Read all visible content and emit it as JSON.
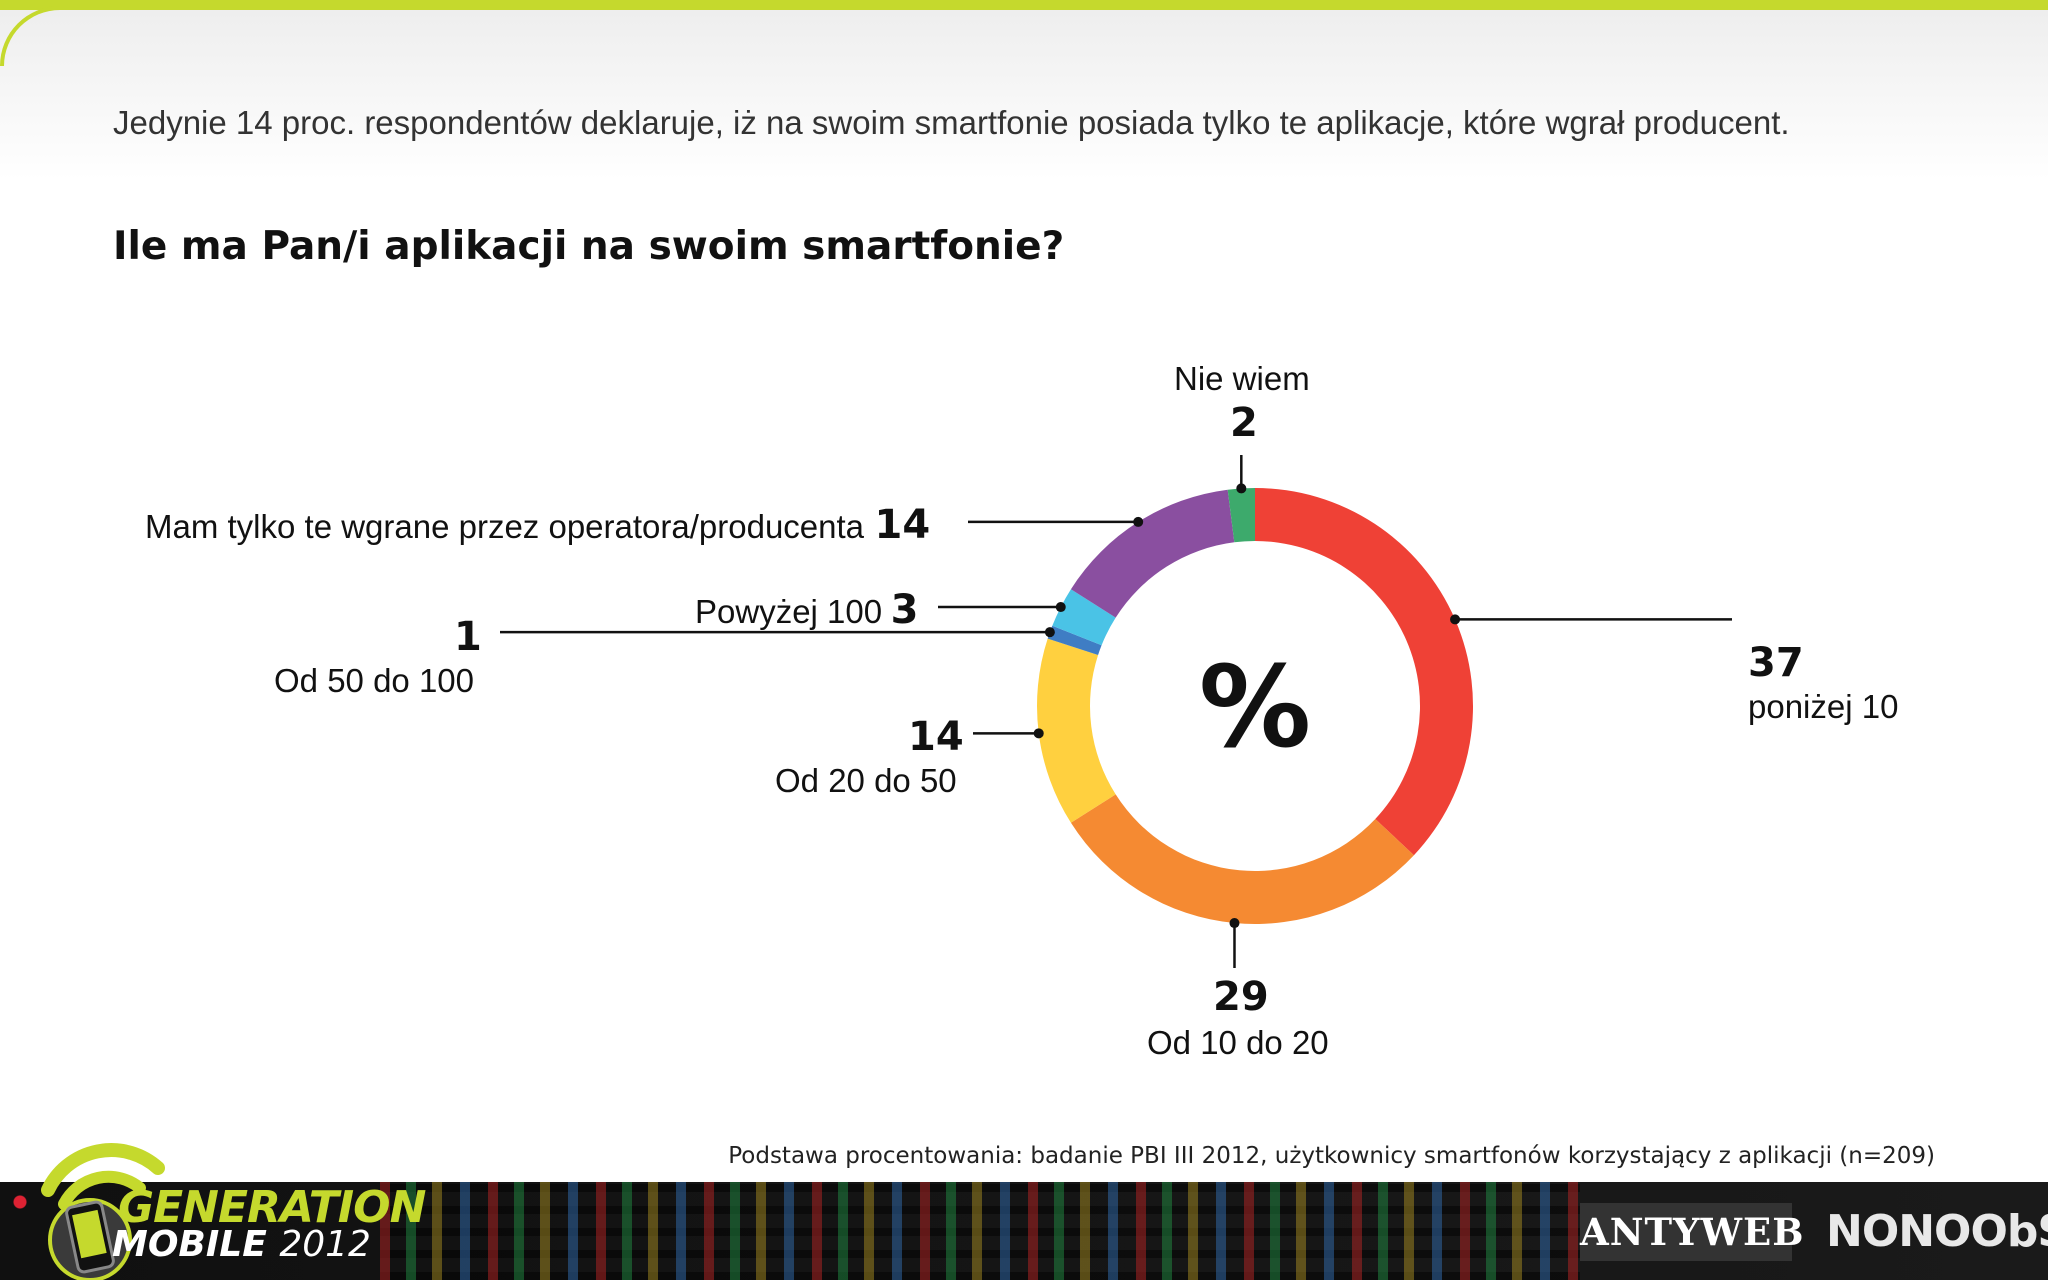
{
  "intro_text": "Jedynie 14 proc. respondentów deklaruje, iż na swoim smartfonie posiada tylko te aplikacje, które wgrał producent.",
  "chart_data": {
    "type": "pie",
    "title": "Ile ma Pan/i aplikacji na swoim smartfonie?",
    "center_label": "%",
    "slices": [
      {
        "label": "poniżej 10",
        "value": 37,
        "color": "#ef4136"
      },
      {
        "label": "Od 10 do 20",
        "value": 29,
        "color": "#f58a32"
      },
      {
        "label": "Od 20 do 50",
        "value": 14,
        "color": "#ffd03f"
      },
      {
        "label": "Od 50 do 100",
        "value": 1,
        "color": "#3f7dc4"
      },
      {
        "label": "Powyżej 100",
        "value": 3,
        "color": "#4ac3e6"
      },
      {
        "label": "Mam tylko te wgrane przez operatora/producenta",
        "value": 14,
        "color": "#8a4fa0"
      },
      {
        "label": "Nie wiem",
        "value": 2,
        "color": "#3daa6c"
      }
    ]
  },
  "footnote": "Podstawa procentowania: badanie PBI III 2012, użytkownicy smartfonów korzystający z aplikacji (n=209)",
  "footer": {
    "brand_line1": "GENERATION",
    "brand_line2": "MOBILE",
    "brand_year": "2012",
    "partner1": "ANTYWEB",
    "partner2": "NONOObS",
    "accent_color": "#c5d92d"
  }
}
